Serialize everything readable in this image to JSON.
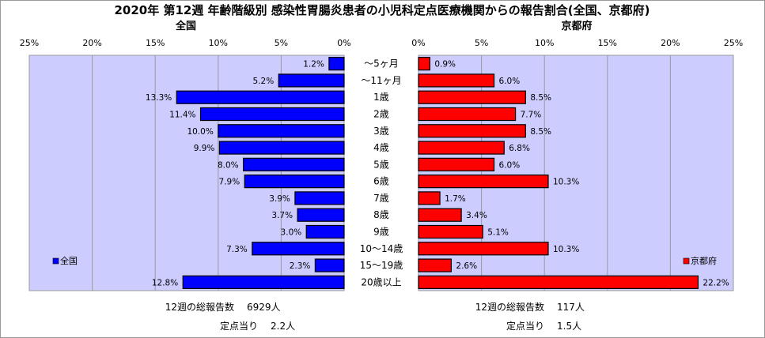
{
  "title": "2020年 第12週 年齢階級別 感染性胃腸炎患者の小児科定点医療機関からの報告割合(全国、京都府)",
  "chart_data": [
    {
      "type": "bar",
      "title": "全国",
      "categories": [
        "～5ヶ月",
        "～11ヶ月",
        "1歳",
        "2歳",
        "3歳",
        "4歳",
        "5歳",
        "6歳",
        "7歳",
        "8歳",
        "9歳",
        "10～14歳",
        "15～19歳",
        "20歳以上"
      ],
      "series": [
        {
          "name": "全国",
          "values": [
            1.2,
            5.2,
            13.3,
            11.4,
            10.0,
            9.9,
            8.0,
            7.9,
            3.9,
            3.7,
            3.0,
            7.3,
            2.3,
            12.8
          ],
          "color": "#0000ff"
        }
      ],
      "data_labels": [
        "1.2%",
        "5.2%",
        "13.3%",
        "11.4%",
        "10.0%",
        "9.9%",
        "8.0%",
        "7.9%",
        "3.9%",
        "3.7%",
        "3.0%",
        "7.3%",
        "2.3%",
        "12.8%"
      ],
      "xlim": [
        25,
        0
      ],
      "ticks": [
        "25%",
        "20%",
        "15%",
        "10%",
        "5%",
        "0%"
      ],
      "legend_position": "bottom-left",
      "grid": true
    },
    {
      "type": "bar",
      "title": "京都府",
      "categories": [
        "～5ヶ月",
        "～11ヶ月",
        "1歳",
        "2歳",
        "3歳",
        "4歳",
        "5歳",
        "6歳",
        "7歳",
        "8歳",
        "9歳",
        "10～14歳",
        "15～19歳",
        "20歳以上"
      ],
      "series": [
        {
          "name": "京都府",
          "values": [
            0.9,
            6.0,
            8.5,
            7.7,
            8.5,
            6.8,
            6.0,
            10.3,
            1.7,
            3.4,
            5.1,
            10.3,
            2.6,
            22.2
          ],
          "color": "#ff0000"
        }
      ],
      "data_labels": [
        "0.9%",
        "6.0%",
        "8.5%",
        "7.7%",
        "8.5%",
        "6.8%",
        "6.0%",
        "10.3%",
        "1.7%",
        "3.4%",
        "5.1%",
        "10.3%",
        "2.6%",
        "22.2%"
      ],
      "xlim": [
        0,
        25
      ],
      "ticks": [
        "0%",
        "5%",
        "10%",
        "15%",
        "20%",
        "25%"
      ],
      "legend_position": "bottom-right",
      "grid": true
    }
  ],
  "footer": {
    "national": {
      "total_label": "12週の総報告数",
      "total_value": "6929人",
      "per_label": "定点当り",
      "per_value": "2.2人"
    },
    "kyoto": {
      "total_label": "12週の総報告数",
      "total_value": "117人",
      "per_label": "定点当り",
      "per_value": "1.5人"
    }
  },
  "colors": {
    "plot_bg": "#ccccff",
    "national": "#0000ff",
    "kyoto": "#ff0000",
    "grid": "#9a9a9a"
  }
}
